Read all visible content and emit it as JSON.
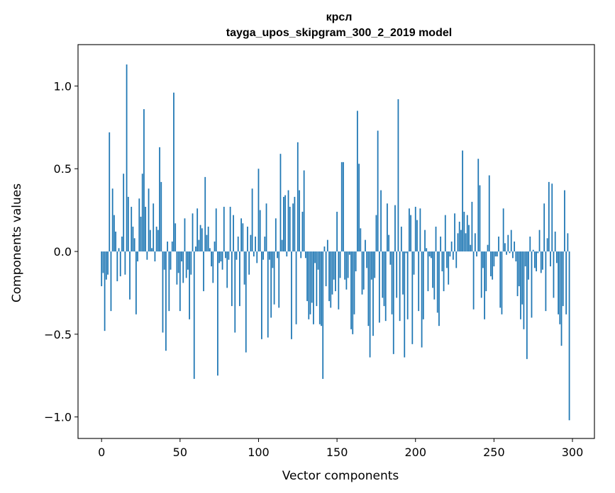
{
  "chart_data": {
    "type": "bar",
    "title_line1": "крсл",
    "title_line2": "tayga_upos_skipgram_300_2_2019 model",
    "xlabel": "Vector components",
    "ylabel": "Components values",
    "xlim": [
      -15,
      314
    ],
    "ylim": [
      -1.13,
      1.25
    ],
    "x_ticks": [
      0,
      50,
      100,
      150,
      200,
      250,
      300
    ],
    "x_tick_labels": [
      "0",
      "50",
      "100",
      "150",
      "200",
      "250",
      "300"
    ],
    "y_ticks": [
      1.0,
      0.5,
      0.0,
      -0.5,
      -1.0
    ],
    "y_tick_labels": [
      "1.0",
      "0.5",
      "0.0",
      "−0.5",
      "−1.0"
    ],
    "bar_color": "#1f77b4",
    "values": [
      -0.21,
      -0.13,
      -0.48,
      -0.17,
      -0.14,
      0.72,
      -0.36,
      0.38,
      0.22,
      0.12,
      -0.18,
      0.02,
      -0.15,
      0.09,
      0.47,
      -0.14,
      1.13,
      0.33,
      -0.29,
      0.27,
      0.15,
      0.08,
      -0.38,
      -0.06,
      0.32,
      0.21,
      0.47,
      0.86,
      0.27,
      -0.05,
      0.38,
      0.13,
      0.02,
      0.29,
      -0.06,
      0.15,
      0.13,
      0.63,
      0.42,
      -0.49,
      -0.11,
      -0.6,
      0.06,
      -0.36,
      -0.11,
      0.06,
      0.96,
      0.17,
      -0.2,
      -0.13,
      -0.36,
      -0.06,
      -0.19,
      0.2,
      -0.16,
      -0.11,
      -0.41,
      -0.14,
      0.23,
      -0.77,
      0.03,
      0.26,
      0.07,
      0.16,
      0.14,
      -0.24,
      0.45,
      0.1,
      0.15,
      0.02,
      -0.09,
      -0.19,
      0.06,
      0.26,
      -0.75,
      -0.07,
      -0.06,
      -0.11,
      0.27,
      -0.04,
      -0.22,
      -0.05,
      0.27,
      -0.33,
      0.22,
      -0.49,
      -0.05,
      0.09,
      -0.33,
      0.2,
      0.17,
      -0.2,
      -0.61,
      0.15,
      -0.14,
      0.1,
      0.38,
      -0.03,
      0.09,
      -0.07,
      0.5,
      0.25,
      -0.53,
      -0.05,
      0.09,
      0.29,
      -0.52,
      -0.05,
      -0.4,
      -0.1,
      -0.32,
      0.2,
      -0.04,
      -0.34,
      0.59,
      0.07,
      0.33,
      0.34,
      -0.03,
      0.37,
      0.27,
      -0.53,
      0.29,
      0.33,
      -0.44,
      0.66,
      0.37,
      -0.04,
      0.24,
      0.49,
      -0.04,
      -0.3,
      -0.41,
      -0.38,
      -0.31,
      -0.44,
      -0.07,
      -0.33,
      -0.11,
      -0.44,
      -0.45,
      -0.77,
      0.03,
      -0.21,
      0.07,
      -0.3,
      -0.34,
      -0.26,
      -0.17,
      -0.24,
      0.24,
      -0.35,
      -0.16,
      0.54,
      0.54,
      -0.17,
      -0.23,
      -0.16,
      -0.02,
      -0.47,
      -0.5,
      -0.38,
      -0.12,
      0.85,
      0.53,
      0.14,
      -0.26,
      -0.23,
      0.07,
      -0.1,
      -0.45,
      -0.64,
      -0.17,
      -0.51,
      -0.16,
      0.22,
      0.73,
      -0.43,
      0.37,
      -0.28,
      -0.33,
      -0.42,
      0.29,
      0.1,
      -0.08,
      -0.38,
      -0.62,
      0.28,
      -0.28,
      0.92,
      -0.42,
      0.15,
      -0.26,
      -0.64,
      -0.01,
      -0.41,
      0.26,
      0.22,
      -0.56,
      -0.14,
      0.27,
      0.19,
      -0.36,
      0.26,
      -0.58,
      -0.41,
      0.13,
      0.02,
      -0.24,
      -0.03,
      -0.04,
      -0.22,
      -0.29,
      0.15,
      -0.37,
      -0.45,
      0.09,
      -0.12,
      -0.24,
      0.22,
      -0.1,
      -0.2,
      -0.03,
      0.06,
      -0.05,
      0.23,
      -0.1,
      0.11,
      0.18,
      0.13,
      0.61,
      0.24,
      0.11,
      0.22,
      0.16,
      0.04,
      0.3,
      -0.35,
      0.11,
      -0.03,
      0.56,
      0.4,
      -0.28,
      -0.1,
      -0.41,
      -0.24,
      0.04,
      0.46,
      -0.15,
      -0.17,
      -0.09,
      -0.03,
      -0.03,
      0.09,
      -0.34,
      -0.38,
      0.26,
      0.05,
      -0.02,
      0.1,
      -0.01,
      0.13,
      -0.04,
      0.06,
      -0.06,
      -0.27,
      -0.21,
      -0.41,
      -0.32,
      -0.47,
      -0.09,
      -0.65,
      -0.17,
      0.09,
      -0.4,
      0.01,
      -0.1,
      -0.12,
      -0.01,
      0.13,
      -0.13,
      -0.11,
      0.29,
      -0.36,
      0.08,
      0.42,
      -0.09,
      0.41,
      -0.28,
      0.12,
      -0.07,
      -0.38,
      -0.44,
      -0.57,
      -0.33,
      0.37,
      -0.38,
      0.11,
      -1.02
    ]
  }
}
